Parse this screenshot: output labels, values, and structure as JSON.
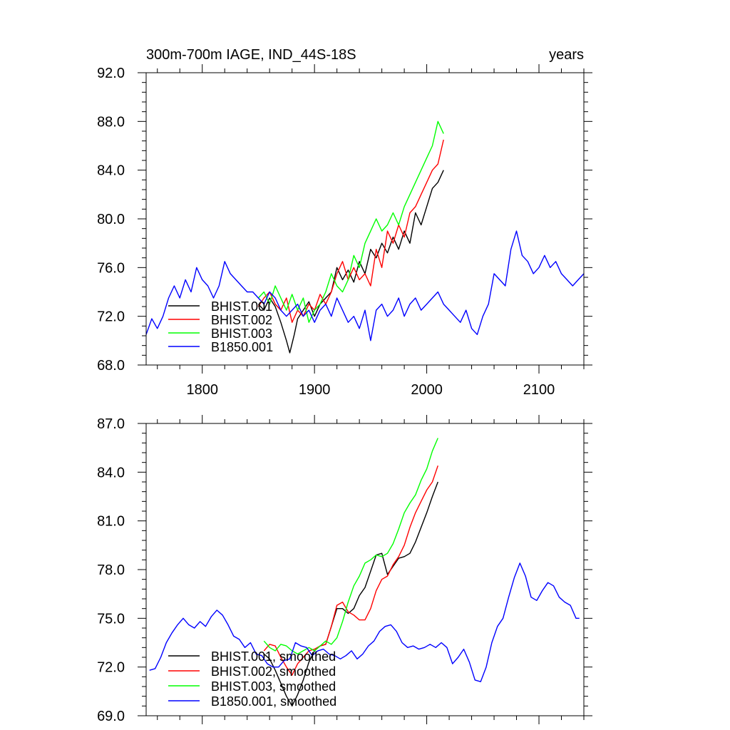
{
  "chart_data": [
    {
      "type": "line",
      "title_left": "300m-700m IAGE, IND_44S-18S",
      "title_right": "years",
      "xlim": [
        1750,
        2140
      ],
      "ylim": [
        68,
        92
      ],
      "x_ticks": [
        1800,
        1900,
        2000,
        2100
      ],
      "x_tick_labels": [
        "1800",
        "1900",
        "2000",
        "2100"
      ],
      "y_ticks": [
        68,
        72,
        76,
        80,
        84,
        88,
        92
      ],
      "y_tick_labels": [
        "68.0",
        "72.0",
        "76.0",
        "80.0",
        "84.0",
        "88.0",
        "92.0"
      ],
      "legend_placement": "bottom-left",
      "series": [
        {
          "name": "BHIST.001",
          "color": "#000000",
          "x": [
            1850,
            1855,
            1860,
            1865,
            1870,
            1875,
            1878,
            1882,
            1885,
            1890,
            1895,
            1900,
            1905,
            1910,
            1915,
            1920,
            1925,
            1930,
            1935,
            1940,
            1945,
            1950,
            1955,
            1960,
            1965,
            1970,
            1975,
            1980,
            1985,
            1990,
            1995,
            2000,
            2005,
            2010,
            2015
          ],
          "y": [
            73.0,
            72.5,
            73.5,
            72.8,
            71.5,
            70.0,
            69.0,
            70.5,
            71.8,
            72.5,
            73.2,
            72.0,
            73.0,
            73.5,
            74.0,
            76.0,
            75.0,
            75.8,
            74.8,
            76.5,
            75.5,
            77.5,
            76.8,
            78.0,
            77.2,
            78.5,
            77.5,
            79.0,
            78.0,
            80.5,
            79.5,
            81.0,
            82.5,
            83.0,
            84.0
          ]
        },
        {
          "name": "BHIST.002",
          "color": "#ff0000",
          "x": [
            1850,
            1855,
            1860,
            1865,
            1870,
            1875,
            1880,
            1885,
            1890,
            1895,
            1900,
            1905,
            1910,
            1915,
            1920,
            1925,
            1930,
            1935,
            1940,
            1945,
            1950,
            1955,
            1960,
            1965,
            1970,
            1975,
            1980,
            1985,
            1990,
            1995,
            2000,
            2005,
            2010,
            2015
          ],
          "y": [
            72.8,
            73.5,
            74.0,
            73.0,
            72.5,
            73.5,
            71.5,
            72.5,
            72.0,
            73.0,
            72.5,
            73.8,
            73.0,
            74.0,
            75.5,
            76.5,
            75.0,
            76.0,
            75.0,
            75.5,
            74.5,
            77.5,
            76.0,
            79.0,
            78.0,
            79.5,
            78.5,
            80.5,
            81.0,
            82.0,
            83.0,
            84.0,
            84.5,
            86.5
          ]
        },
        {
          "name": "BHIST.003",
          "color": "#00ff00",
          "x": [
            1850,
            1855,
            1860,
            1865,
            1870,
            1875,
            1880,
            1885,
            1890,
            1895,
            1900,
            1905,
            1910,
            1915,
            1920,
            1925,
            1930,
            1935,
            1940,
            1945,
            1950,
            1955,
            1960,
            1965,
            1970,
            1975,
            1980,
            1985,
            1990,
            1995,
            2000,
            2005,
            2010,
            2015
          ],
          "y": [
            73.5,
            74.0,
            73.0,
            74.5,
            73.5,
            72.5,
            73.8,
            72.5,
            73.5,
            71.5,
            72.5,
            73.0,
            74.0,
            75.5,
            74.5,
            74.0,
            75.0,
            77.0,
            76.0,
            78.0,
            79.0,
            80.0,
            79.0,
            79.5,
            80.5,
            79.5,
            81.0,
            82.0,
            83.0,
            84.0,
            85.0,
            86.0,
            88.0,
            87.0
          ]
        },
        {
          "name": "B1850.001",
          "color": "#0000ff",
          "x": [
            1750,
            1755,
            1760,
            1765,
            1770,
            1775,
            1780,
            1785,
            1790,
            1795,
            1800,
            1805,
            1810,
            1815,
            1820,
            1825,
            1830,
            1835,
            1840,
            1845,
            1850,
            1855,
            1860,
            1865,
            1870,
            1875,
            1880,
            1885,
            1890,
            1895,
            1900,
            1905,
            1910,
            1915,
            1920,
            1925,
            1930,
            1935,
            1940,
            1945,
            1950,
            1955,
            1960,
            1965,
            1970,
            1975,
            1980,
            1985,
            1990,
            1995,
            2000,
            2005,
            2010,
            2015,
            2020,
            2025,
            2030,
            2035,
            2040,
            2045,
            2050,
            2055,
            2060,
            2065,
            2070,
            2075,
            2080,
            2085,
            2090,
            2095,
            2100,
            2105,
            2110,
            2115,
            2120,
            2125,
            2130,
            2135,
            2140
          ],
          "y": [
            70.5,
            71.8,
            71.0,
            72.0,
            73.5,
            74.5,
            73.5,
            75.0,
            74.0,
            76.0,
            75.0,
            74.5,
            73.5,
            74.5,
            76.5,
            75.5,
            75.0,
            74.5,
            74.0,
            74.0,
            73.5,
            73.0,
            74.0,
            73.5,
            72.5,
            72.0,
            72.5,
            73.0,
            72.0,
            72.5,
            71.5,
            72.5,
            73.0,
            72.0,
            73.5,
            72.5,
            71.5,
            72.0,
            71.0,
            72.5,
            70.0,
            72.5,
            73.0,
            72.0,
            72.5,
            73.5,
            72.0,
            73.0,
            73.5,
            72.5,
            73.0,
            73.5,
            74.0,
            73.0,
            72.5,
            72.0,
            71.5,
            72.5,
            71.0,
            70.5,
            72.0,
            73.0,
            75.5,
            75.0,
            74.5,
            77.5,
            79.0,
            77.0,
            76.5,
            75.5,
            76.0,
            77.0,
            76.0,
            76.5,
            75.5,
            75.0,
            74.5,
            75.0,
            75.5
          ]
        }
      ]
    },
    {
      "type": "line",
      "xlim": [
        1750,
        2140
      ],
      "ylim": [
        69,
        87
      ],
      "x_ticks": [
        1800,
        1900,
        2000,
        2100
      ],
      "y_ticks": [
        69,
        72,
        75,
        78,
        81,
        84,
        87
      ],
      "y_tick_labels": [
        "69.0",
        "72.0",
        "75.0",
        "78.0",
        "81.0",
        "84.0",
        "87.0"
      ],
      "legend_placement": "bottom-left",
      "series": [
        {
          "name": "BHIST.001, smoothed",
          "color": "#000000",
          "x": [
            1855,
            1860,
            1865,
            1870,
            1875,
            1880,
            1885,
            1890,
            1895,
            1900,
            1905,
            1910,
            1915,
            1920,
            1925,
            1930,
            1935,
            1940,
            1945,
            1950,
            1955,
            1960,
            1965,
            1970,
            1975,
            1980,
            1985,
            1990,
            1995,
            2000,
            2005,
            2010
          ],
          "y": [
            72.8,
            72.5,
            71.8,
            71.0,
            70.2,
            69.6,
            70.3,
            71.2,
            72.3,
            73.0,
            73.3,
            73.4,
            74.5,
            75.6,
            75.6,
            75.3,
            75.6,
            76.4,
            76.9,
            77.9,
            78.9,
            79.0,
            77.7,
            78.2,
            78.7,
            78.8,
            79.0,
            79.7,
            80.6,
            81.5,
            82.5,
            83.4
          ]
        },
        {
          "name": "BHIST.002, smoothed",
          "color": "#ff0000",
          "x": [
            1855,
            1860,
            1865,
            1870,
            1875,
            1880,
            1885,
            1890,
            1895,
            1900,
            1905,
            1910,
            1915,
            1920,
            1925,
            1930,
            1935,
            1940,
            1945,
            1950,
            1955,
            1960,
            1965,
            1970,
            1975,
            1980,
            1985,
            1990,
            1995,
            2000,
            2005,
            2010
          ],
          "y": [
            73.0,
            73.4,
            73.3,
            72.6,
            72.0,
            71.5,
            72.2,
            72.6,
            73.0,
            73.1,
            73.3,
            73.4,
            74.5,
            75.8,
            76.0,
            75.4,
            75.2,
            74.9,
            74.9,
            75.6,
            76.7,
            77.4,
            77.6,
            78.3,
            78.8,
            79.5,
            80.6,
            81.5,
            82.2,
            82.9,
            83.4,
            84.4
          ]
        },
        {
          "name": "BHIST.003, smoothed",
          "color": "#00ff00",
          "x": [
            1855,
            1860,
            1865,
            1870,
            1875,
            1880,
            1885,
            1890,
            1895,
            1900,
            1905,
            1910,
            1915,
            1920,
            1925,
            1930,
            1935,
            1940,
            1945,
            1950,
            1955,
            1960,
            1965,
            1970,
            1975,
            1980,
            1985,
            1990,
            1995,
            2000,
            2005,
            2010
          ],
          "y": [
            73.6,
            73.2,
            73.0,
            73.4,
            73.3,
            73.0,
            72.8,
            73.0,
            73.2,
            73.0,
            73.3,
            73.6,
            73.4,
            73.8,
            74.8,
            76.0,
            77.0,
            77.6,
            78.4,
            78.6,
            78.9,
            78.8,
            79.0,
            79.6,
            80.5,
            81.5,
            82.1,
            82.6,
            83.5,
            84.2,
            85.3,
            86.1
          ]
        },
        {
          "name": "B1850.001, smoothed",
          "color": "#0000ff",
          "x": [
            1753,
            1758,
            1763,
            1768,
            1773,
            1778,
            1783,
            1788,
            1793,
            1798,
            1803,
            1808,
            1813,
            1818,
            1823,
            1828,
            1833,
            1838,
            1843,
            1848,
            1853,
            1858,
            1863,
            1868,
            1873,
            1878,
            1883,
            1888,
            1893,
            1898,
            1903,
            1908,
            1913,
            1918,
            1923,
            1928,
            1933,
            1938,
            1943,
            1948,
            1953,
            1958,
            1963,
            1968,
            1973,
            1978,
            1983,
            1988,
            1993,
            1998,
            2003,
            2008,
            2013,
            2018,
            2023,
            2028,
            2033,
            2038,
            2043,
            2048,
            2053,
            2058,
            2063,
            2068,
            2073,
            2078,
            2083,
            2088,
            2093,
            2098,
            2103,
            2108,
            2113,
            2118,
            2123,
            2128,
            2133,
            2136
          ],
          "y": [
            71.8,
            71.9,
            72.6,
            73.5,
            74.1,
            74.6,
            75.0,
            74.6,
            74.4,
            74.8,
            74.5,
            75.1,
            75.5,
            75.2,
            74.6,
            73.9,
            73.7,
            73.2,
            73.5,
            72.8,
            72.7,
            72.2,
            72.0,
            72.0,
            72.4,
            72.5,
            73.5,
            73.3,
            73.2,
            72.7,
            73.0,
            73.1,
            72.8,
            72.7,
            72.5,
            72.7,
            73.0,
            72.5,
            72.8,
            73.3,
            73.6,
            74.2,
            74.5,
            74.6,
            74.2,
            73.5,
            73.2,
            73.3,
            73.1,
            73.2,
            73.4,
            73.2,
            73.5,
            73.2,
            72.2,
            72.6,
            73.1,
            72.3,
            71.2,
            71.1,
            72.0,
            73.5,
            74.5,
            75.0,
            76.3,
            77.5,
            78.4,
            77.6,
            76.3,
            76.1,
            76.7,
            77.2,
            77.0,
            76.3,
            76.0,
            75.8,
            75.0,
            75.0
          ]
        }
      ]
    }
  ]
}
